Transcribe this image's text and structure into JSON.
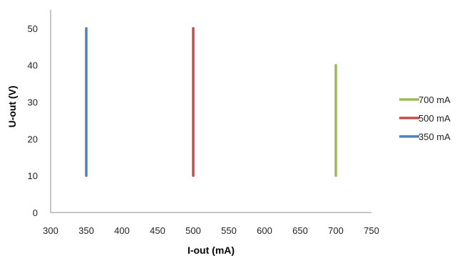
{
  "chart_data": {
    "type": "line",
    "title": "",
    "xlabel": "I-out (mA)",
    "ylabel": "U-out (V)",
    "xlim": [
      300,
      750
    ],
    "ylim": [
      0,
      55
    ],
    "xticks": [
      300,
      350,
      400,
      450,
      500,
      550,
      600,
      650,
      700,
      750
    ],
    "yticks": [
      0,
      10,
      20,
      30,
      40,
      50
    ],
    "grid": false,
    "legend_position": "right",
    "series": [
      {
        "name": "700 mA",
        "color": "#9BBB59",
        "points": [
          [
            700,
            10
          ],
          [
            700,
            40
          ]
        ]
      },
      {
        "name": "500 mA",
        "color": "#C0504D",
        "points": [
          [
            500,
            10
          ],
          [
            500,
            50
          ]
        ]
      },
      {
        "name": "350 mA",
        "color": "#4F81BD",
        "points": [
          [
            350,
            10
          ],
          [
            350,
            50
          ]
        ]
      }
    ]
  }
}
